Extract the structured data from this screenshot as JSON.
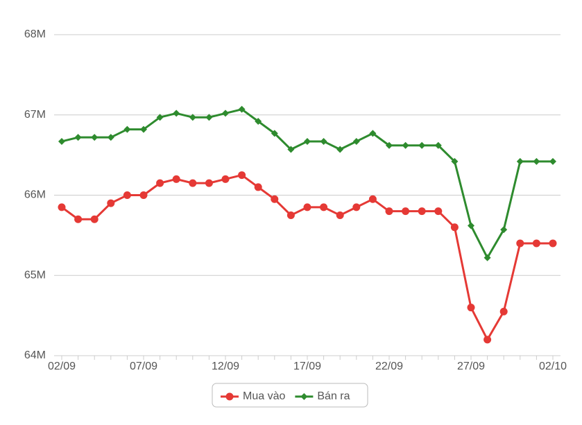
{
  "chart_data": {
    "type": "line",
    "categories": [
      "02/09",
      null,
      null,
      null,
      null,
      "07/09",
      null,
      null,
      null,
      null,
      "12/09",
      null,
      null,
      null,
      null,
      "17/09",
      null,
      null,
      null,
      null,
      "22/09",
      null,
      null,
      null,
      null,
      "27/09",
      null,
      null,
      null,
      null,
      "02/10"
    ],
    "series": [
      {
        "name": "Mua vào",
        "color": "#e53935",
        "marker": "circle",
        "values": [
          65850000,
          65700000,
          65700000,
          65900000,
          66000000,
          66000000,
          66150000,
          66200000,
          66150000,
          66150000,
          66200000,
          66250000,
          66100000,
          65950000,
          65750000,
          65850000,
          65850000,
          65750000,
          65850000,
          65950000,
          65800000,
          65800000,
          65800000,
          65800000,
          65600000,
          64600000,
          64200000,
          64550000,
          65400000,
          65400000,
          65400000
        ]
      },
      {
        "name": "Bán ra",
        "color": "#2e8b2e",
        "marker": "diamond",
        "values": [
          66670000,
          66720000,
          66720000,
          66720000,
          66820000,
          66820000,
          66970000,
          67020000,
          66970000,
          66970000,
          67020000,
          67070000,
          66920000,
          66770000,
          66570000,
          66670000,
          66670000,
          66570000,
          66670000,
          66770000,
          66620000,
          66620000,
          66620000,
          66620000,
          66420000,
          65620000,
          65220000,
          65570000,
          66420000,
          66420000,
          66420000
        ]
      }
    ],
    "ylim": [
      64000000,
      68000000
    ],
    "yticks": [
      {
        "value": 64000000,
        "label": "64M"
      },
      {
        "value": 65000000,
        "label": "65M"
      },
      {
        "value": 66000000,
        "label": "66M"
      },
      {
        "value": 67000000,
        "label": "67M"
      },
      {
        "value": 68000000,
        "label": "68M"
      }
    ],
    "grid": true,
    "legend": "bottom"
  }
}
